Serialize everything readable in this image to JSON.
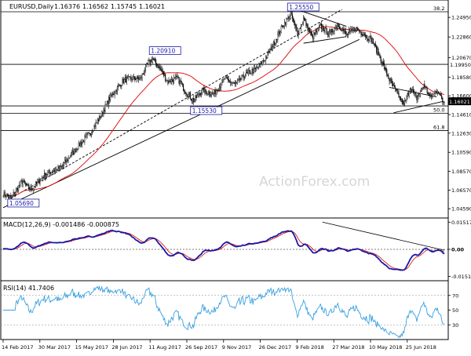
{
  "chart_data": [
    {
      "type": "candlestick",
      "title": "EURUSD,Daily",
      "ohlc_readout": {
        "open": "1.16376",
        "high": "1.16562",
        "low": "1.15745",
        "close": "1.16021"
      },
      "x_ticks": [
        "14 Feb 2017",
        "30 Mar 2017",
        "15 May 2017",
        "28 Jun 2017",
        "11 Aug 2017",
        "26 Sep 2017",
        "9 Nov 2017",
        "26 Dec 2017",
        "9 Feb 2018",
        "27 Mar 2018",
        "10 May 2018",
        "25 Jun 2018"
      ],
      "y_ticks": [
        "1.24950",
        "1.22860",
        "1.20670",
        "1.18580",
        "1.16600",
        "1.14610",
        "1.12630",
        "1.10590",
        "1.08570",
        "1.06570",
        "1.04590"
      ],
      "ylim": [
        1.036,
        1.268
      ],
      "price_key_points": [
        {
          "x": 0,
          "y": 1.062
        },
        {
          "x": 9,
          "y": 1.057
        },
        {
          "x": 22,
          "y": 1.075
        },
        {
          "x": 32,
          "y": 1.066
        },
        {
          "x": 50,
          "y": 1.083
        },
        {
          "x": 68,
          "y": 1.09
        },
        {
          "x": 85,
          "y": 1.11
        },
        {
          "x": 100,
          "y": 1.125
        },
        {
          "x": 112,
          "y": 1.142
        },
        {
          "x": 125,
          "y": 1.165
        },
        {
          "x": 140,
          "y": 1.182
        },
        {
          "x": 150,
          "y": 1.185
        },
        {
          "x": 160,
          "y": 1.184
        },
        {
          "x": 168,
          "y": 1.2
        },
        {
          "x": 174,
          "y": 1.205
        },
        {
          "x": 182,
          "y": 1.196
        },
        {
          "x": 192,
          "y": 1.181
        },
        {
          "x": 203,
          "y": 1.185
        },
        {
          "x": 212,
          "y": 1.171
        },
        {
          "x": 222,
          "y": 1.161
        },
        {
          "x": 232,
          "y": 1.172
        },
        {
          "x": 245,
          "y": 1.168
        },
        {
          "x": 258,
          "y": 1.184
        },
        {
          "x": 270,
          "y": 1.178
        },
        {
          "x": 282,
          "y": 1.188
        },
        {
          "x": 294,
          "y": 1.194
        },
        {
          "x": 305,
          "y": 1.205
        },
        {
          "x": 315,
          "y": 1.221
        },
        {
          "x": 326,
          "y": 1.241
        },
        {
          "x": 335,
          "y": 1.253
        },
        {
          "x": 343,
          "y": 1.232
        },
        {
          "x": 350,
          "y": 1.248
        },
        {
          "x": 360,
          "y": 1.228
        },
        {
          "x": 370,
          "y": 1.24
        },
        {
          "x": 380,
          "y": 1.232
        },
        {
          "x": 390,
          "y": 1.242
        },
        {
          "x": 400,
          "y": 1.231
        },
        {
          "x": 410,
          "y": 1.238
        },
        {
          "x": 420,
          "y": 1.232
        },
        {
          "x": 430,
          "y": 1.225
        },
        {
          "x": 440,
          "y": 1.205
        },
        {
          "x": 450,
          "y": 1.183
        },
        {
          "x": 460,
          "y": 1.167
        },
        {
          "x": 467,
          "y": 1.156
        },
        {
          "x": 474,
          "y": 1.175
        },
        {
          "x": 482,
          "y": 1.163
        },
        {
          "x": 490,
          "y": 1.178
        },
        {
          "x": 498,
          "y": 1.164
        },
        {
          "x": 506,
          "y": 1.173
        },
        {
          "x": 512,
          "y": 1.16
        }
      ],
      "labels": [
        {
          "text": "1.05690",
          "x": 9,
          "y": 1.0569
        },
        {
          "text": "1.20910",
          "x": 174,
          "y": 1.2091
        },
        {
          "text": "1.15530",
          "x": 222,
          "y": 1.1553
        },
        {
          "text": "1.25550",
          "x": 335,
          "y": 1.2555
        }
      ],
      "horizontal_levels": [
        {
          "y": 1.2555,
          "label": "38.2"
        },
        {
          "y": 1.1995,
          "label": "1.19950"
        },
        {
          "y": 1.1553,
          "label": ""
        },
        {
          "y": 1.1475,
          "label": "50.0"
        },
        {
          "y": 1.129,
          "label": "61.8"
        }
      ],
      "current_price": "1.16021",
      "watermark": "ActionForex.com"
    },
    {
      "type": "line",
      "title": "MACD(12,26,9) -0.001486 -0.000875",
      "y_ticks": [
        "0.015176",
        "0.00",
        "-0.015109"
      ],
      "ylim": [
        -0.0175,
        0.0175
      ]
    },
    {
      "type": "line",
      "title": "RSI(14) 41.7406",
      "y_ticks": [
        "70",
        "50",
        "30"
      ],
      "ylim": [
        10,
        90
      ]
    }
  ]
}
